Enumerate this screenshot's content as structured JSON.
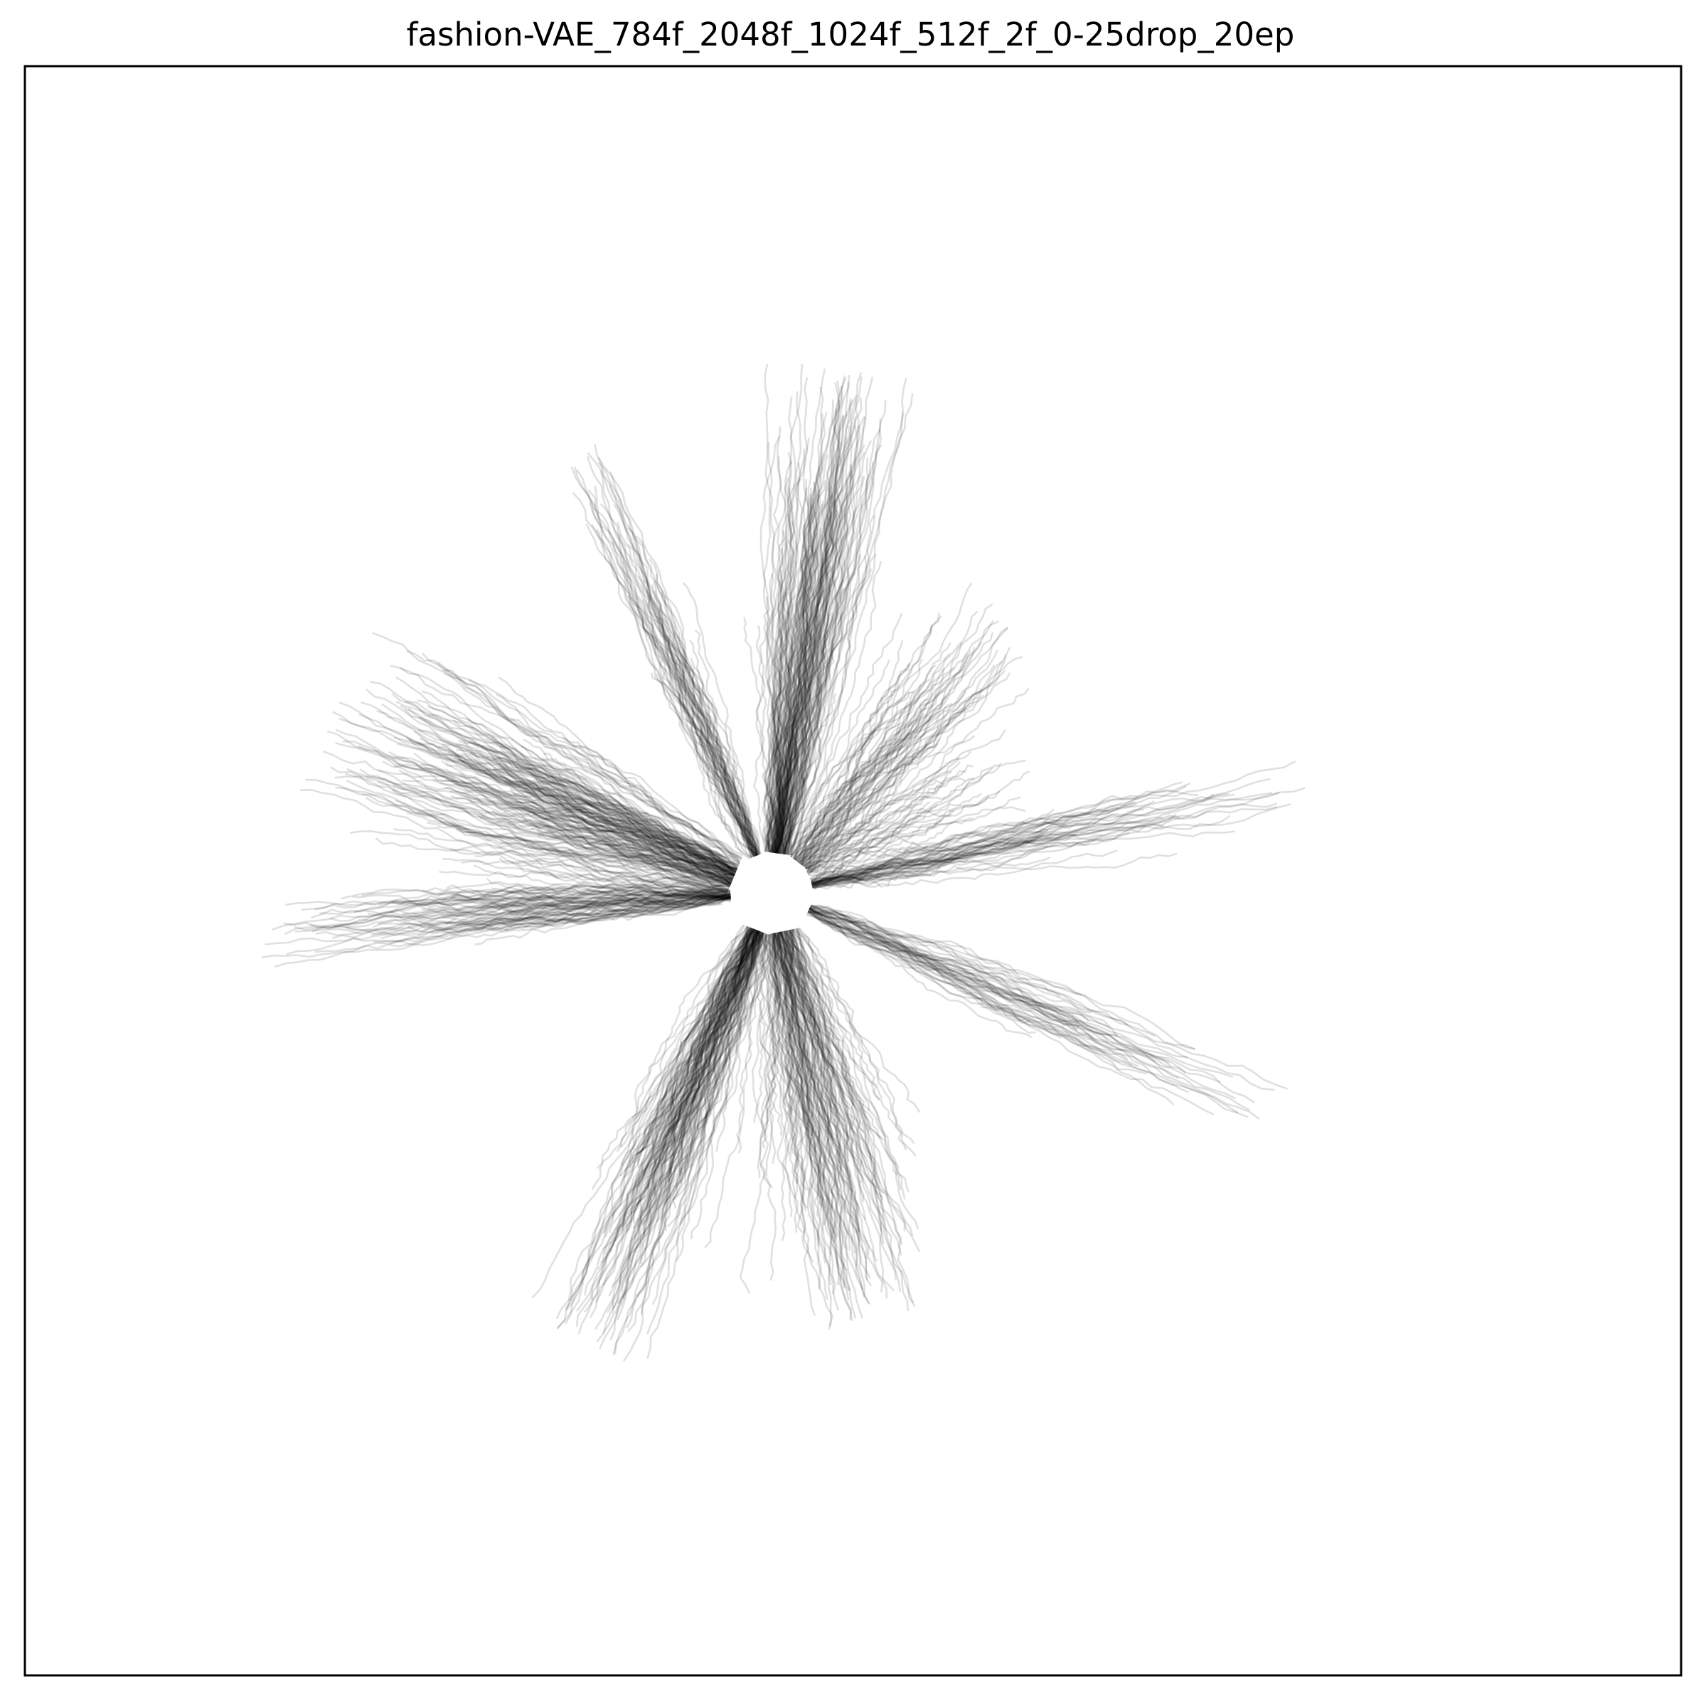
{
  "chart_data": {
    "type": "line",
    "title": "fashion-VAE_784f_2048f_1024f_512f_2f_0-25drop_20ep",
    "xlabel": "",
    "ylabel": "",
    "xticks": [],
    "yticks": [],
    "grid": false,
    "legend": "none",
    "line_color": "#000000",
    "line_alpha": 0.12,
    "xlim": [
      -1,
      1
    ],
    "ylim": [
      -1,
      1
    ],
    "arms": [
      {
        "angle_deg": 112,
        "length": 0.9,
        "width": 0.035,
        "count": 55
      },
      {
        "angle_deg": 82,
        "length": 0.98,
        "width": 0.13,
        "count": 150
      },
      {
        "angle_deg": 52,
        "length": 0.65,
        "width": 0.18,
        "count": 70
      },
      {
        "angle_deg": 24,
        "length": 0.5,
        "width": 0.15,
        "count": 25
      },
      {
        "angle_deg": 12,
        "length": 0.98,
        "width": 0.03,
        "count": 45
      },
      {
        "angle_deg": -24,
        "length": 1.0,
        "width": 0.035,
        "count": 45
      },
      {
        "angle_deg": -78,
        "length": 0.8,
        "width": 0.16,
        "count": 130
      },
      {
        "angle_deg": -112,
        "length": 0.9,
        "width": 0.1,
        "count": 140
      },
      {
        "angle_deg": -176,
        "length": 0.92,
        "width": 0.03,
        "count": 70
      },
      {
        "angle_deg": 158,
        "length": 0.85,
        "width": 0.2,
        "count": 170
      }
    ]
  }
}
